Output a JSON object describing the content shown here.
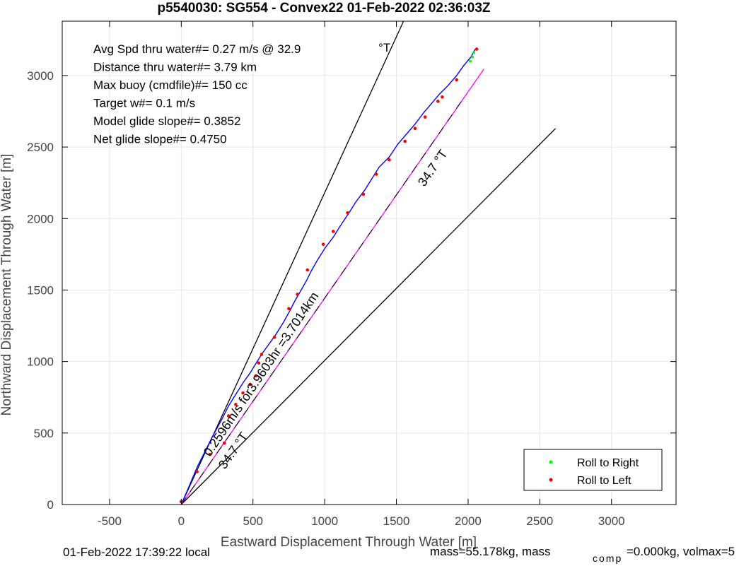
{
  "chart_data": {
    "type": "line",
    "title": "p5540030: SG554 - Convex22 01-Feb-2022 02:36:03Z",
    "xlabel": "Eastward Displacement Through Water [m]",
    "ylabel": "Northward Displacement Through Water [m]",
    "xlim": [
      -830,
      3450
    ],
    "ylim": [
      0,
      3380
    ],
    "xticks": [
      -500,
      0,
      500,
      1000,
      1500,
      2000,
      2500,
      3000
    ],
    "yticks": [
      0,
      500,
      1000,
      1500,
      2000,
      2500,
      3000
    ],
    "xtick_labels": [
      "-500",
      "0",
      "500",
      "1000",
      "1500",
      "2000",
      "2500",
      "3000"
    ],
    "ytick_labels": [
      "0",
      "500",
      "1000",
      "1500",
      "2000",
      "2500",
      "3000"
    ],
    "grid": true,
    "legend_position": "bottom-right",
    "info_lines": [
      "Avg Spd thru water#=  0.27 m/s @  32.9",
      "Distance thru water#=  3.79 km",
      "Max buoy (cmdfile)#= 150 cc",
      "Target w#= 0.1 m/s",
      "Model glide slope#= 0.3852",
      "Net glide slope#= 0.4750"
    ],
    "info_unit": "°T",
    "annotations": {
      "upper_heading": "34.7 °T",
      "lower_heading": "34.7 °T",
      "speed_summary": "0.2596m/s for3.9603hr =3.7014km"
    },
    "reference_lines": [
      {
        "name": "bound-left",
        "x": [
          0,
          1550
        ],
        "y": [
          0,
          3380
        ],
        "color": "#000000"
      },
      {
        "name": "bound-right",
        "x": [
          0,
          2610
        ],
        "y": [
          0,
          2630
        ],
        "color": "#000000"
      },
      {
        "name": "heading-line",
        "x": [
          0,
          2110
        ],
        "y": [
          0,
          3045
        ],
        "color": "#ff00ff"
      }
    ],
    "series": [
      {
        "name": "",
        "color": "#0000ff",
        "x": [
          0,
          60,
          110,
          160,
          220,
          280,
          330,
          380,
          430,
          480,
          520,
          560,
          610,
          660,
          710,
          760,
          790,
          830,
          870,
          910,
          950,
          1000,
          1060,
          1110,
          1170,
          1220,
          1280,
          1330,
          1380,
          1450,
          1510,
          1570,
          1630,
          1690,
          1750,
          1800,
          1860,
          1920,
          1970,
          2020,
          2050
        ],
        "y": [
          0,
          140,
          260,
          360,
          480,
          590,
          690,
          770,
          850,
          920,
          985,
          1050,
          1120,
          1190,
          1270,
          1360,
          1420,
          1490,
          1560,
          1640,
          1710,
          1790,
          1870,
          1950,
          2040,
          2120,
          2200,
          2280,
          2360,
          2430,
          2520,
          2590,
          2660,
          2740,
          2810,
          2870,
          2930,
          3000,
          3070,
          3130,
          3185
        ]
      }
    ],
    "points": {
      "roll_left": {
        "name": "Roll to Left",
        "color": "#ff0000",
        "x": [
          0,
          110,
          200,
          300,
          330,
          380,
          430,
          480,
          520,
          540,
          560,
          650,
          750,
          810,
          880,
          990,
          1060,
          1160,
          1270,
          1360,
          1450,
          1560,
          1630,
          1700,
          1790,
          1820,
          1920,
          2060
        ],
        "y": [
          20,
          230,
          350,
          430,
          620,
          700,
          780,
          840,
          900,
          990,
          1050,
          1170,
          1370,
          1470,
          1640,
          1820,
          1910,
          2040,
          2170,
          2310,
          2410,
          2540,
          2630,
          2710,
          2820,
          2850,
          2970,
          3185
        ]
      },
      "roll_right": {
        "name": "Roll to Right",
        "color": "#00ff00",
        "x": [
          2015,
          2030,
          2040
        ],
        "y": [
          3100,
          3130,
          3160
        ]
      }
    }
  },
  "footer": {
    "local_time": "01-Feb-2022 17:39:22 local",
    "mass_text": "mass=55.178kg, mass",
    "comp_sub": "comp",
    "comp_text": "=0.000kg, volmax=5"
  }
}
